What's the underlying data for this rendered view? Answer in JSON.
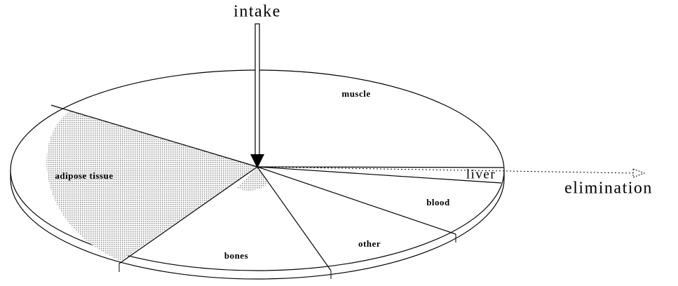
{
  "arrows": {
    "intake": "intake",
    "elimination": "elimination"
  },
  "segments": [
    "muscle",
    "adipose tissue",
    "liver",
    "blood",
    "other",
    "bones"
  ]
}
